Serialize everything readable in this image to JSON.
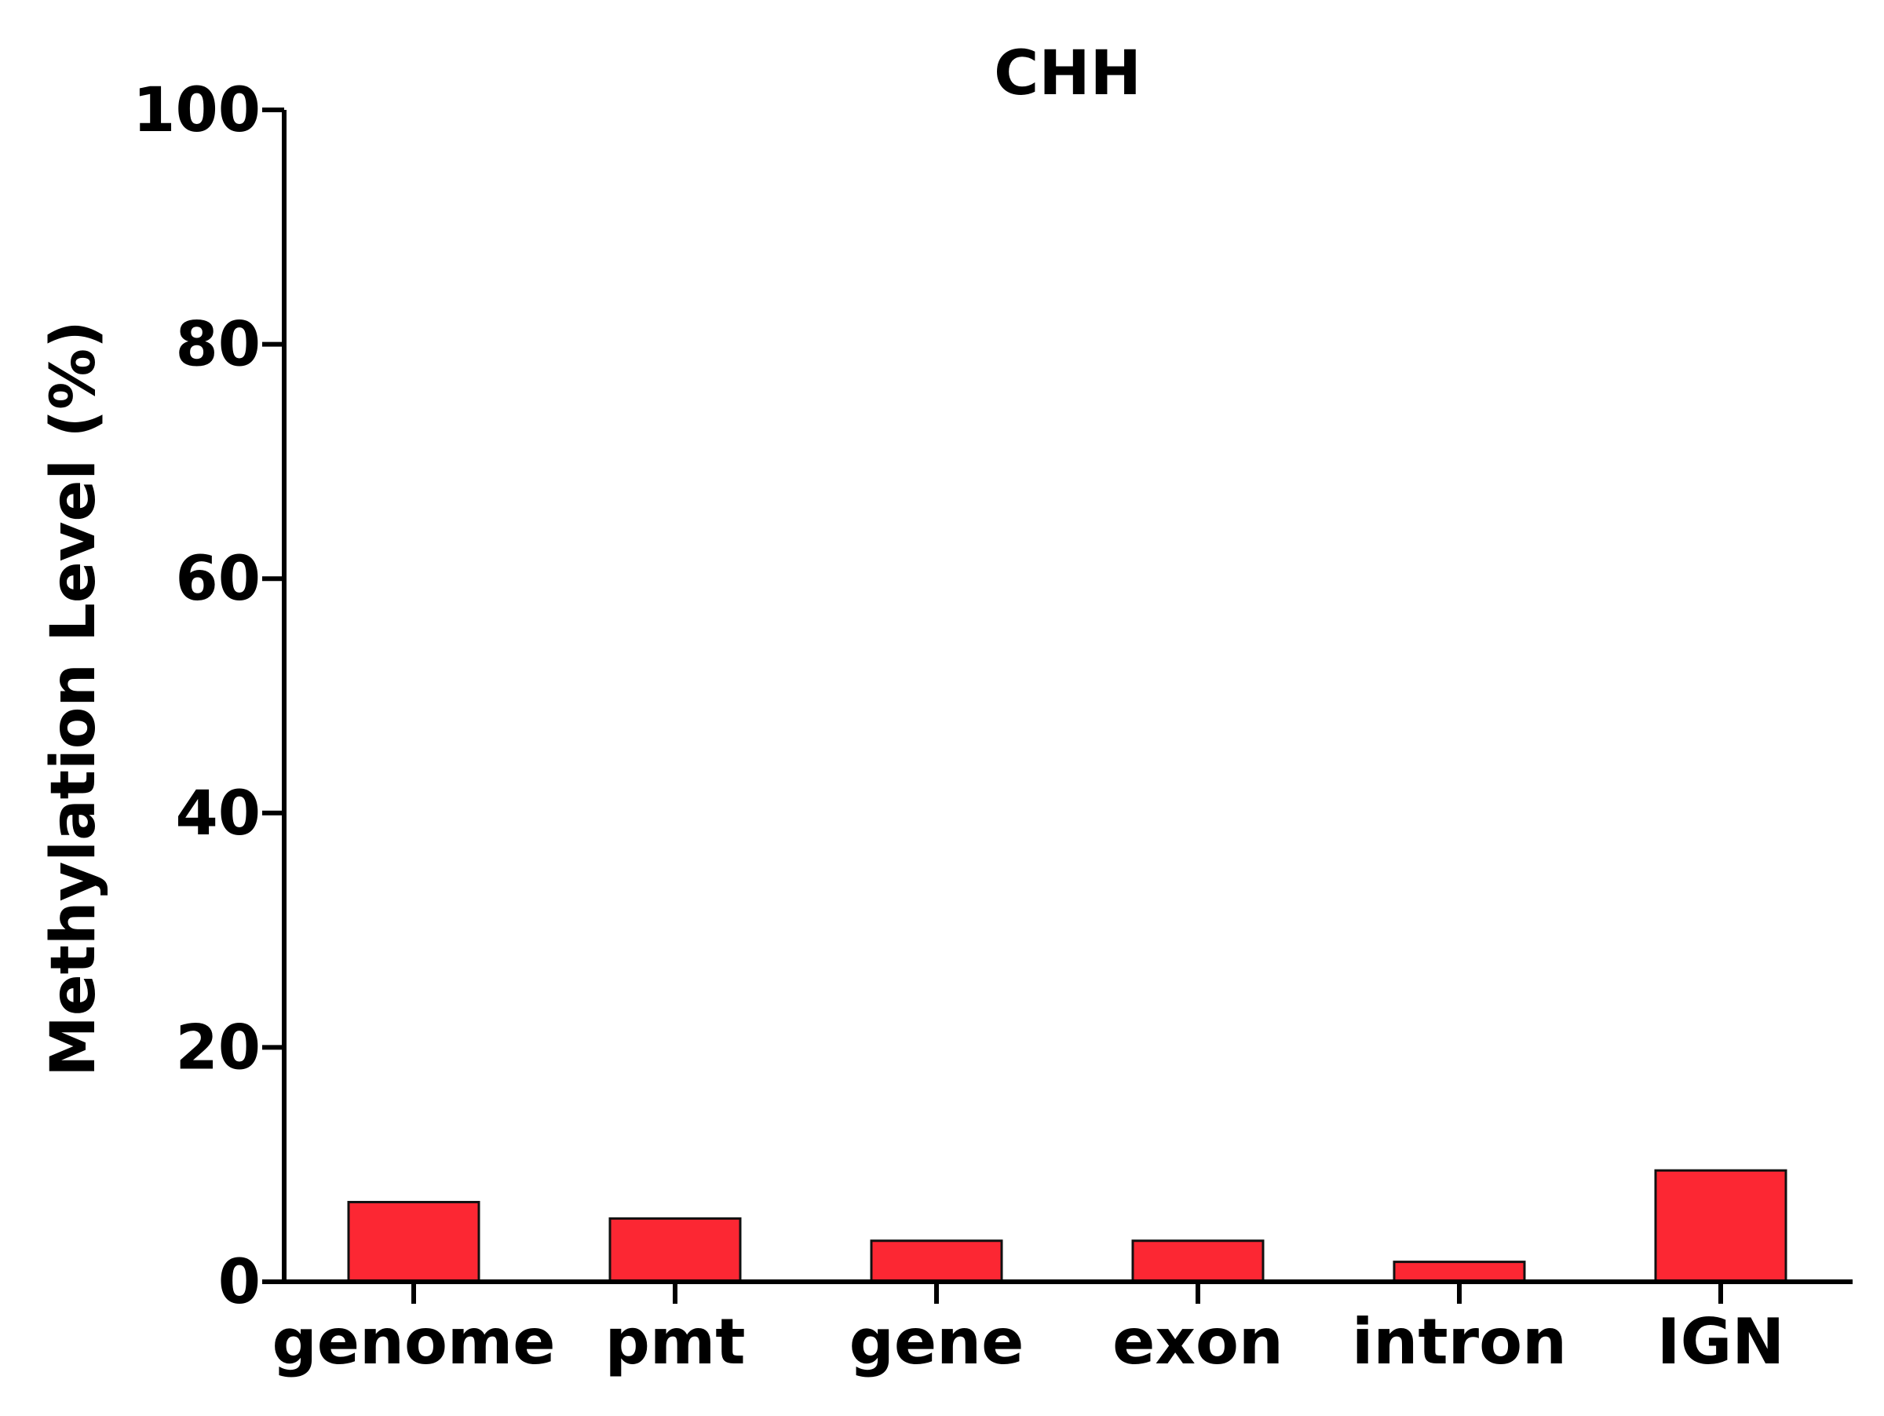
{
  "chart_data": {
    "type": "bar",
    "title": "CHH",
    "xlabel": "",
    "ylabel": "Methylation Level (%)",
    "categories": [
      "genome",
      "pmt",
      "gene",
      "exon",
      "intron",
      "IGN"
    ],
    "values": [
      6.8,
      5.4,
      3.5,
      3.5,
      1.7,
      9.5
    ],
    "ylim": [
      0,
      100
    ],
    "yticks": [
      0,
      20,
      40,
      60,
      80,
      100
    ],
    "grid": false,
    "legend": "none",
    "bar_color": "#fc2733",
    "bar_edge_color": "#111111",
    "axis_color": "#000000"
  }
}
